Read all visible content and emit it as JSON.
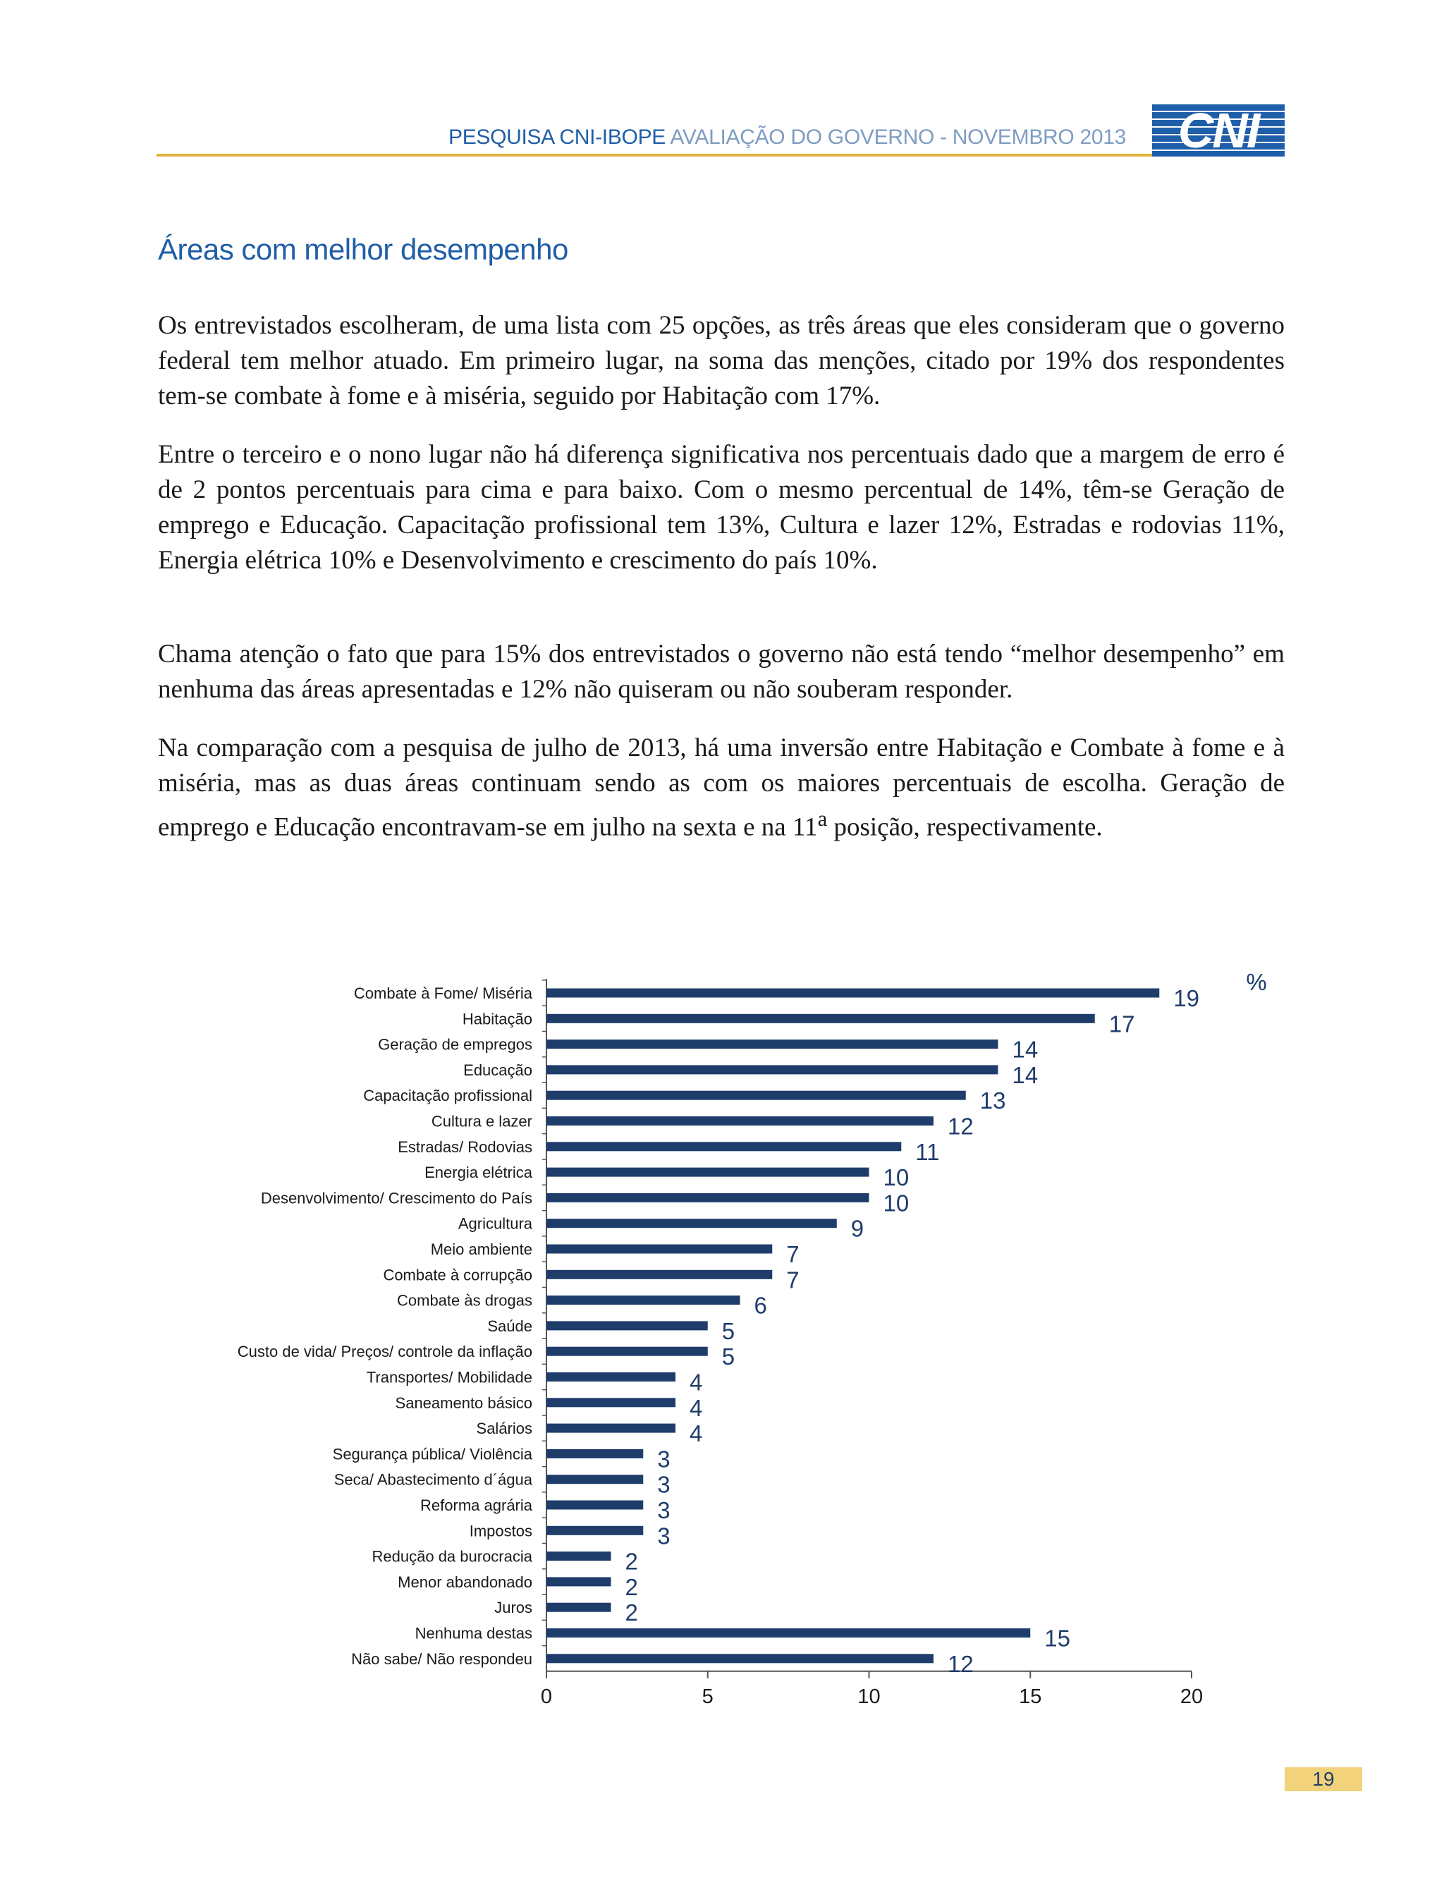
{
  "header": {
    "title_bold": "PESQUISA CNI-IBOPE",
    "title_rest": "AVALIAÇÃO DO GOVERNO - NOVEMBRO 2013",
    "logo_text": "CNI"
  },
  "section": {
    "title": "Áreas com melhor desempenho"
  },
  "paragraphs": {
    "p1": "Os entrevistados escolheram, de uma lista com 25 opções, as três áreas que eles consideram que o governo federal tem melhor atuado. Em primeiro lugar, na soma das menções, citado por 19% dos respondentes tem-se combate à fome e à miséria, seguido por  Habitação com 17%.",
    "p2": "Entre o terceiro e o nono lugar não há diferença significativa nos percentuais dado que a margem de erro é de 2 pontos percentuais para cima e para baixo. Com o mesmo percentual de 14%, têm-se Geração de emprego e Educação. Capacitação profissional tem 13%, Cultura e lazer 12%, Estradas e rodovias 11%, Energia elétrica 10% e Desenvolvimento e crescimento do país 10%.",
    "p3": "Chama atenção o fato que para 15% dos entrevistados o governo não está tendo “melhor desempenho” em nenhuma das áreas apresentadas e 12% não quiseram ou não souberam responder.",
    "p4_before": "Na comparação com a pesquisa de julho de 2013, há uma inversão entre Habitação e Combate à fome e à miséria, mas as duas áreas continuam sendo as com os maiores percentuais de escolha.  Geração de emprego e Educação encontravam-se em julho na sexta e na 11",
    "p4_sup": "a",
    "p4_after": " posição, respectivamente."
  },
  "chart_data": {
    "type": "bar",
    "orientation": "horizontal",
    "unit": "%",
    "categories": [
      "Combate à Fome/ Miséria",
      "Habitação",
      "Geração de empregos",
      "Educação",
      "Capacitação profissional",
      "Cultura e lazer",
      "Estradas/ Rodovias",
      "Energia elétrica",
      "Desenvolvimento/ Crescimento do País",
      "Agricultura",
      "Meio ambiente",
      "Combate à corrupção",
      "Combate às drogas",
      "Saúde",
      "Custo de vida/ Preços/ controle da inflação",
      "Transportes/ Mobilidade",
      "Saneamento básico",
      "Salários",
      "Segurança pública/ Violência",
      "Seca/ Abastecimento d´água",
      "Reforma agrária",
      "Impostos",
      "Redução da burocracia",
      "Menor abandonado",
      "Juros",
      "Nenhuma destas",
      "Não sabe/ Não respondeu"
    ],
    "values": [
      19,
      17,
      14,
      14,
      13,
      12,
      11,
      10,
      10,
      9,
      7,
      7,
      6,
      5,
      5,
      4,
      4,
      4,
      3,
      3,
      3,
      3,
      2,
      2,
      2,
      15,
      12
    ],
    "xlim": [
      0,
      20
    ],
    "xticks": [
      0,
      5,
      10,
      15,
      20
    ],
    "bar_color": "#1f3d6b",
    "label_color": "#1f3d6b",
    "grid": false
  },
  "page_number": "19"
}
